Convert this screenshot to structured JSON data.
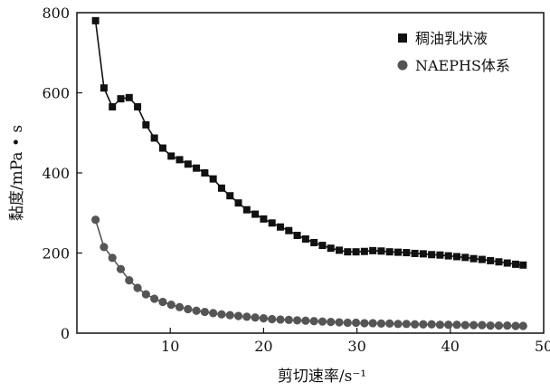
{
  "chart_data": {
    "type": "line",
    "xlabel": "剪切速率/s⁻¹",
    "ylabel": "黏度/mPa • s",
    "xlim": [
      0,
      50
    ],
    "ylim": [
      0,
      800
    ],
    "xticks": [
      "10",
      "20",
      "30",
      "40",
      "50"
    ],
    "yticks": [
      "0",
      "200",
      "400",
      "600",
      "800"
    ],
    "grid": false,
    "legend_position": "top-right",
    "series": [
      {
        "name": "稠油乳状液",
        "marker": "square",
        "color": "#111111",
        "x": [
          2.0,
          2.9,
          3.8,
          4.7,
          5.6,
          6.5,
          7.4,
          8.3,
          9.2,
          10.1,
          11.0,
          11.9,
          12.8,
          13.7,
          14.6,
          15.5,
          16.4,
          17.3,
          18.2,
          19.1,
          20.0,
          20.9,
          21.8,
          22.7,
          23.6,
          24.5,
          25.4,
          26.3,
          27.2,
          28.1,
          29.0,
          29.9,
          30.8,
          31.7,
          32.6,
          33.5,
          34.4,
          35.3,
          36.2,
          37.1,
          38.0,
          38.9,
          39.8,
          40.7,
          41.6,
          42.5,
          43.4,
          44.3,
          45.2,
          46.1,
          47.0,
          47.8
        ],
        "y": [
          780,
          612,
          565,
          585,
          588,
          565,
          520,
          487,
          462,
          442,
          433,
          422,
          412,
          400,
          385,
          362,
          343,
          325,
          308,
          297,
          285,
          275,
          265,
          256,
          244,
          235,
          226,
          219,
          212,
          207,
          203,
          203,
          204,
          206,
          205,
          203,
          202,
          201,
          199,
          198,
          196,
          195,
          193,
          191,
          189,
          186,
          184,
          181,
          178,
          175,
          172,
          170
        ]
      },
      {
        "name": "NAEPHS体系",
        "marker": "circle",
        "color": "#555555",
        "x": [
          2.0,
          2.9,
          3.8,
          4.7,
          5.6,
          6.5,
          7.4,
          8.3,
          9.2,
          10.1,
          11.0,
          11.9,
          12.8,
          13.7,
          14.6,
          15.5,
          16.4,
          17.3,
          18.2,
          19.1,
          20.0,
          20.9,
          21.8,
          22.7,
          23.6,
          24.5,
          25.4,
          26.3,
          27.2,
          28.1,
          29.0,
          29.9,
          30.8,
          31.7,
          32.6,
          33.5,
          34.4,
          35.3,
          36.2,
          37.1,
          38.0,
          38.9,
          39.8,
          40.7,
          41.6,
          42.5,
          43.4,
          44.3,
          45.2,
          46.1,
          47.0,
          47.8
        ],
        "y": [
          283,
          215,
          188,
          160,
          132,
          113,
          97,
          86,
          78,
          71,
          65,
          60,
          56,
          53,
          50,
          47,
          45,
          43,
          41,
          39,
          37,
          35,
          34,
          33,
          32,
          31,
          30,
          29,
          28,
          27,
          26,
          26,
          25,
          25,
          24,
          24,
          23,
          23,
          22,
          22,
          22,
          21,
          21,
          21,
          20,
          20,
          20,
          19,
          19,
          19,
          18,
          18
        ]
      }
    ]
  }
}
